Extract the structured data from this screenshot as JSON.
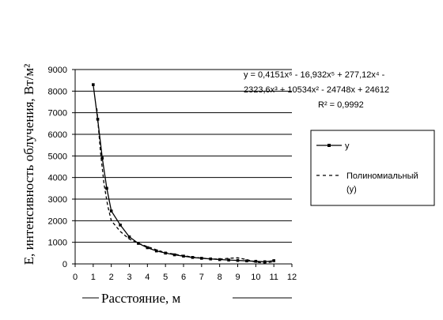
{
  "chart_data": {
    "type": "line",
    "xlabel": "Расстояние, м",
    "ylabel": "E, интенсивность облучения, Вт/м²",
    "xlim": [
      0,
      12
    ],
    "ylim": [
      0,
      9000
    ],
    "x_ticks": [
      "0",
      "1",
      "2",
      "3",
      "4",
      "5",
      "6",
      "7",
      "8",
      "9",
      "10",
      "11",
      "12"
    ],
    "y_ticks": [
      "0",
      "1000",
      "2000",
      "3000",
      "4000",
      "5000",
      "6000",
      "7000",
      "8000",
      "9000"
    ],
    "grid": "horizontal",
    "legend_position": "right",
    "series": [
      {
        "name": "y",
        "style": "solid-with-markers",
        "color": "#000000",
        "x": [
          1.0,
          1.25,
          1.5,
          1.75,
          2.0,
          2.5,
          3.0,
          3.5,
          4.0,
          4.5,
          5.0,
          5.5,
          6.0,
          6.5,
          7.0,
          7.5,
          8.0,
          8.5,
          9.0,
          9.5,
          10.0,
          10.5,
          11.0
        ],
        "y": [
          8300,
          6700,
          4900,
          3500,
          2450,
          1800,
          1250,
          950,
          750,
          600,
          500,
          420,
          360,
          300,
          260,
          230,
          200,
          180,
          160,
          140,
          120,
          100,
          150
        ]
      },
      {
        "name": "Полиномиальный (y)",
        "style": "dashed",
        "color": "#000000",
        "x": [
          1.2,
          1.4,
          1.6,
          1.8,
          2.0,
          2.5,
          3.0,
          3.5,
          4.0,
          4.5,
          5.0,
          5.5,
          6.0,
          6.5,
          7.0,
          7.5,
          8.0,
          8.5,
          9.0,
          9.5,
          10.0,
          10.5,
          11.0
        ],
        "y": [
          7200,
          5200,
          3700,
          2700,
          2000,
          1500,
          1150,
          950,
          800,
          650,
          520,
          450,
          380,
          320,
          270,
          230,
          220,
          260,
          280,
          200,
          80,
          40,
          100
        ]
      }
    ],
    "equation_lines": [
      "y = 0,4151x⁶ - 16,932x⁵ + 277,12x⁴ -",
      "2323,6x³ + 10534x² - 24748x + 24612",
      "R² = 0,9992"
    ]
  }
}
